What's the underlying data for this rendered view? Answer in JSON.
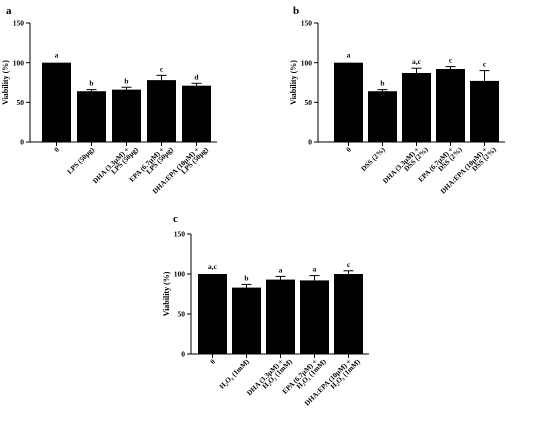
{
  "chart_data": [
    {
      "panel": "a",
      "type": "bar",
      "ylabel": "Viability (%)",
      "ylim": [
        0,
        150
      ],
      "yticks": [
        0,
        50,
        100,
        150
      ],
      "categories": [
        [
          "0"
        ],
        [
          "LPS (50µg)"
        ],
        [
          "DHA (3.3µM) +",
          "LPS (50µg)"
        ],
        [
          "EPA (6.7µM) +",
          "LPS (50µg)"
        ],
        [
          "DHA:EPA (10µM) +",
          "LPS (50µg)"
        ]
      ],
      "values": [
        100,
        64,
        66,
        78,
        71
      ],
      "errors": [
        0,
        2,
        3,
        6,
        3
      ],
      "significance": [
        "a",
        "b",
        "b",
        "c",
        "d"
      ]
    },
    {
      "panel": "b",
      "type": "bar",
      "ylabel": "Viability (%)",
      "ylim": [
        0,
        150
      ],
      "yticks": [
        0,
        50,
        100,
        150
      ],
      "categories": [
        [
          "0"
        ],
        [
          "DSS (2%)"
        ],
        [
          "DHA (3.3µM) +",
          "DSS (2%)"
        ],
        [
          "EPA (6.7µM) +",
          "DSS (2%)"
        ],
        [
          "DHA:EPA (10µM) +",
          "DSS (2%)"
        ]
      ],
      "values": [
        100,
        64,
        87,
        92,
        77
      ],
      "errors": [
        0,
        2,
        6,
        3,
        13
      ],
      "significance": [
        "a",
        "b",
        "a,c",
        "c",
        "c"
      ]
    },
    {
      "panel": "c",
      "type": "bar",
      "ylabel": "Viability (%)",
      "ylim": [
        0,
        150
      ],
      "yticks": [
        0,
        50,
        100,
        150
      ],
      "categories": [
        [
          "0"
        ],
        [
          "H₂O₂ (1mM)"
        ],
        [
          "DHA (3.3µM) +",
          "H₂O₂ (1mM)"
        ],
        [
          "EPA (6.7µM) +",
          "H₂O₂ (1mM)"
        ],
        [
          "DHA:EPA (10µM) +",
          "H₂O₂ (1mM)"
        ]
      ],
      "values": [
        100,
        83,
        93,
        92,
        100
      ],
      "errors": [
        0,
        4,
        4,
        6,
        4
      ],
      "significance": [
        "a,c",
        "b",
        "a",
        "a",
        "c"
      ]
    }
  ]
}
